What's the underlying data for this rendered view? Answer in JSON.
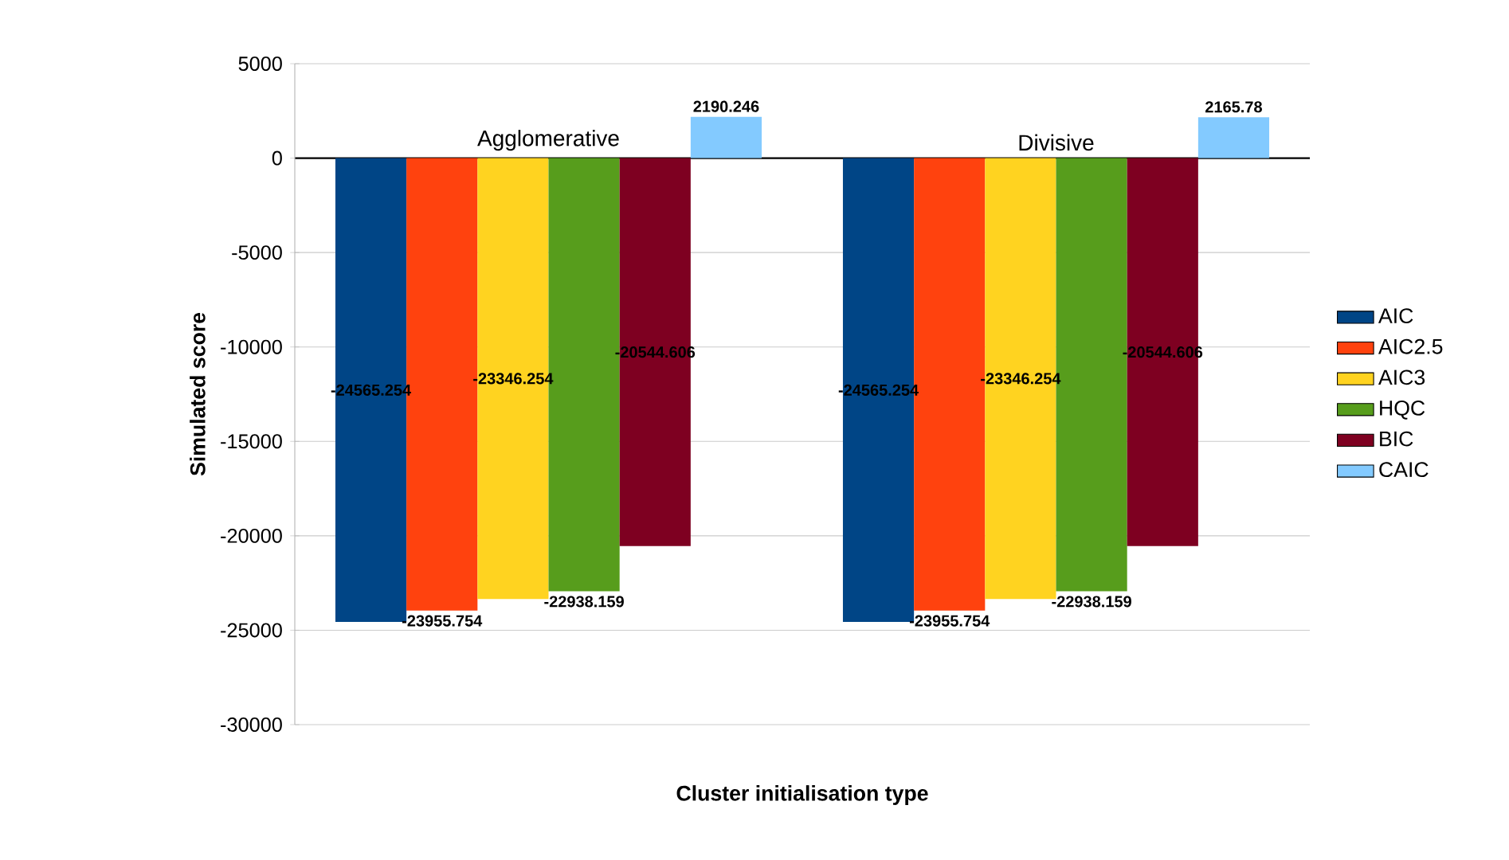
{
  "chart_data": {
    "type": "bar",
    "xlabel": "Cluster initialisation type",
    "ylabel": "Simulated score",
    "categories": [
      "Agglomerative",
      "Divisive"
    ],
    "series": [
      {
        "name": "AIC",
        "color": "#004586",
        "values": [
          -24565.254,
          -24565.254
        ],
        "value_labels": [
          "-24565.254",
          "-24565.254"
        ]
      },
      {
        "name": "AIC2.5",
        "color": "#ff420e",
        "values": [
          -23955.754,
          -23955.754
        ],
        "value_labels": [
          "-23955.754",
          "-23955.754"
        ]
      },
      {
        "name": "AIC3",
        "color": "#ffd320",
        "values": [
          -23346.254,
          -23346.254
        ],
        "value_labels": [
          "-23346.254",
          "-23346.254"
        ]
      },
      {
        "name": "HQC",
        "color": "#579d1c",
        "values": [
          -22938.159,
          -22938.159
        ],
        "value_labels": [
          "-22938.159",
          "-22938.159"
        ]
      },
      {
        "name": "BIC",
        "color": "#7e0021",
        "values": [
          -20544.606,
          -20544.606
        ],
        "value_labels": [
          "-20544.606",
          "-20544.606"
        ]
      },
      {
        "name": "CAIC",
        "color": "#83caff",
        "values": [
          2190.246,
          2165.78
        ],
        "value_labels": [
          "2190.246",
          "2165.78"
        ]
      }
    ],
    "ylim": [
      -30000,
      5000
    ],
    "yticks": [
      -30000,
      -25000,
      -20000,
      -15000,
      -10000,
      -5000,
      0,
      5000
    ],
    "grid": "y",
    "legend": "right"
  }
}
